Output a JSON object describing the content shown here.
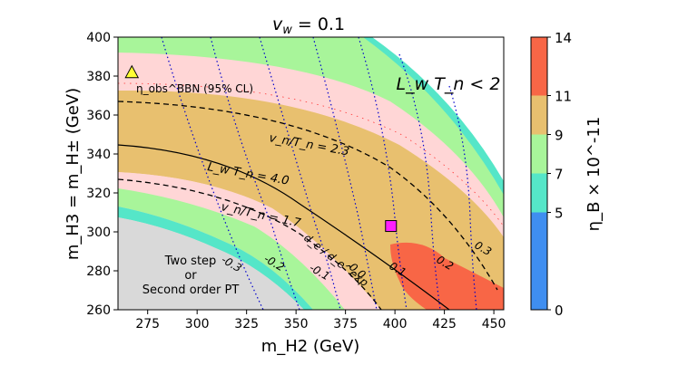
{
  "chart_data": {
    "type": "heatmap",
    "title": "v_w = 0.1",
    "title_parts": {
      "var": "v",
      "sub": "w",
      "rest": " = 0.1"
    },
    "xlabel": "m_H2 (GeV)",
    "ylabel": "m_H3 = m_H± (GeV)",
    "xlim": [
      260,
      455
    ],
    "ylim": [
      260,
      400
    ],
    "x_ticks": [
      "275",
      "300",
      "325",
      "350",
      "375",
      "400",
      "425",
      "450"
    ],
    "y_ticks": [
      "260",
      "280",
      "300",
      "320",
      "340",
      "360",
      "380",
      "400"
    ],
    "colorbar": {
      "label": "η_B × 10^-11",
      "ticks": [
        "0",
        "5",
        "7",
        "9",
        "11",
        "14"
      ],
      "bands": [
        {
          "from": 0,
          "to": 5,
          "color": "#3f8ef0"
        },
        {
          "from": 5,
          "to": 7,
          "color": "#55e6c8"
        },
        {
          "from": 7,
          "to": 9,
          "color": "#a8f59a"
        },
        {
          "from": 9,
          "to": 11,
          "color": "#e8c06f"
        },
        {
          "from": 11,
          "to": 14,
          "color": "#f86646"
        }
      ]
    },
    "regions": {
      "lwtn_excluded_label": "L_w T_n < 2",
      "two_step_label": [
        "Two step",
        "or",
        "Second order PT"
      ],
      "bbn_label": "η_obs^BBN (95% CL)",
      "bbn_color": "#ff0000",
      "pink_color": "#ffd6d6",
      "grey_color": "#d9d9d9"
    },
    "contours": {
      "vn_tn": [
        {
          "label": "v_n/T_n = 2.3",
          "value": 2.3,
          "style": "dashed"
        },
        {
          "label": "v_n/T_n = 1.7",
          "value": 1.7,
          "style": "dashed"
        }
      ],
      "lw_tn": [
        {
          "label": "L_w T_n = 4.0",
          "value": 4.0,
          "style": "solid"
        }
      ],
      "de_ratio": {
        "name": "d_e / d_e^exp",
        "color": "#0000cc",
        "style": "dotted",
        "labels": [
          "-0.3",
          "-0.2",
          "-0.1",
          "0.0",
          "0.1",
          "0.2",
          "0.3"
        ]
      }
    },
    "markers": [
      {
        "shape": "triangle",
        "x": 267,
        "y": 382,
        "color": "#ffff33"
      },
      {
        "shape": "square",
        "x": 398,
        "y": 303,
        "color": "#ff1fff"
      }
    ]
  }
}
